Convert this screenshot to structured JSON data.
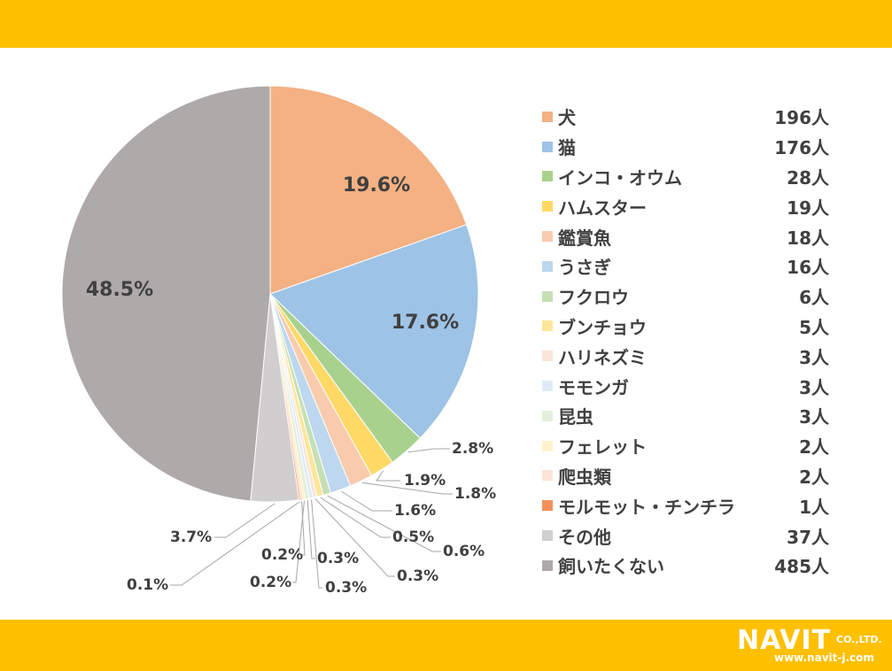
{
  "colors": {
    "band": "#ffc000",
    "label_text": "#404040",
    "leader_line": "#a6a6a6"
  },
  "logo": {
    "brand": "NAVIT",
    "company_suffix": "CO.,LTD.",
    "url": "www.navit-j.com"
  },
  "chart_data": {
    "type": "pie",
    "start_angle_deg": 0,
    "direction": "clockwise",
    "legend_position": "right",
    "categories": [
      "犬",
      "猫",
      "インコ・オウム",
      "ハムスター",
      "鑑賞魚",
      "うさぎ",
      "フクロウ",
      "ブンチョウ",
      "ハリネズミ",
      "モモンガ",
      "昆虫",
      "フェレット",
      "爬虫類",
      "モルモット・チンチラ",
      "その他",
      "飼いたくない"
    ],
    "values": [
      196,
      176,
      28,
      19,
      18,
      16,
      6,
      5,
      3,
      3,
      3,
      2,
      2,
      1,
      37,
      485
    ],
    "counts_text": [
      "196人",
      "176人",
      "28人",
      "19人",
      "18人",
      "16人",
      "6人",
      "5人",
      "3人",
      "3人",
      "3人",
      "2人",
      "2人",
      "1人",
      "37人",
      "485人"
    ],
    "percent_labels": [
      "19.6%",
      "17.6%",
      "2.8%",
      "1.9%",
      "1.8%",
      "1.6%",
      "0.6%",
      "0.5%",
      "0.3%",
      "0.3%",
      "0.3%",
      "0.2%",
      "0.2%",
      "0.1%",
      "3.7%",
      "48.5%"
    ],
    "colors": [
      "#f4b183",
      "#9dc3e6",
      "#a9d18e",
      "#ffd966",
      "#f8cbad",
      "#bdd7ee",
      "#c5e0b4",
      "#ffe699",
      "#fbe5d6",
      "#deebf7",
      "#e2f0d9",
      "#fff2cc",
      "#fce4d6",
      "#f4915a",
      "#d0cece",
      "#aeaaaa"
    ]
  }
}
